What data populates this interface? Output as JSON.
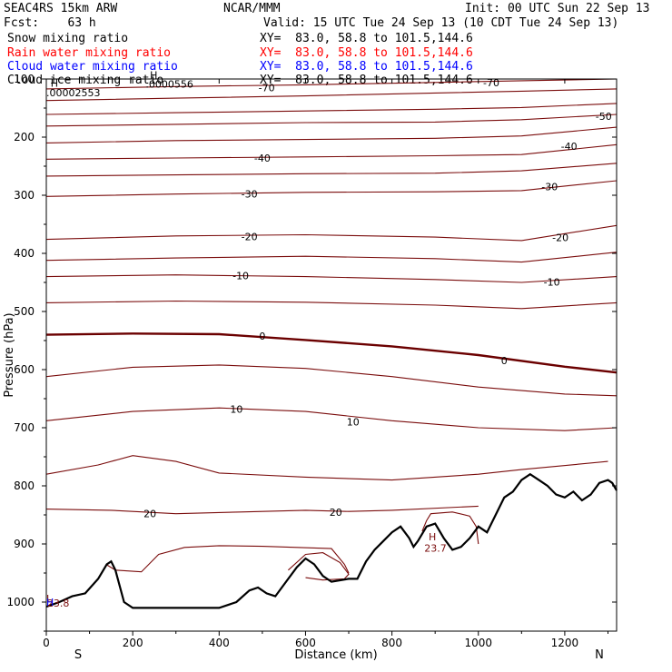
{
  "header": {
    "model": "SEAC4RS 15km ARW",
    "center": "NCAR/MMM",
    "init": "Init: 00 UTC Sun 22 Sep 13",
    "fcst": "Fcst:    63 h",
    "valid": "Valid: 15 UTC Tue 24 Sep 13 (10 CDT Tue 24 Sep 13)",
    "fields": [
      {
        "label": "Snow mixing ratio",
        "xy": "XY=  83.0, 58.8 to 101.5,144.6",
        "color": "#000000"
      },
      {
        "label": "Rain water mixing ratio",
        "xy": "XY=  83.0, 58.8 to 101.5,144.6",
        "color": "#ff0000"
      },
      {
        "label": "Cloud water mixing ratio",
        "xy": "XY=  83.0, 58.8 to 101.5,144.6",
        "color": "#0000ff"
      },
      {
        "label": "Cloud ice mixing ratio",
        "xy": "XY=  83.0, 58.8 to 101.5,144.6",
        "color": "#000000"
      }
    ]
  },
  "chart_data": {
    "type": "line",
    "xlabel": "Distance (km)",
    "ylabel": "Pressure (hPa)",
    "xlim": [
      0,
      1320
    ],
    "ylim": [
      1050,
      100
    ],
    "x_ticks": [
      "0",
      "200",
      "400",
      "600",
      "800",
      "1000",
      "1200"
    ],
    "y_ticks": [
      "100",
      "200",
      "300",
      "400",
      "500",
      "600",
      "700",
      "800",
      "900",
      "1000"
    ],
    "end_labels": {
      "left": "S",
      "right": "N"
    },
    "colors": {
      "contour": "#7a0c0c",
      "zero_contour": "#6b0000",
      "terrain": "#000000"
    },
    "temperature_contours": [
      {
        "value": -70,
        "points": [
          [
            0,
            117
          ],
          [
            300,
            113
          ],
          [
            600,
            110
          ],
          [
            900,
            106
          ],
          [
            1100,
            103
          ],
          [
            1320,
            100
          ]
        ],
        "labels": [
          {
            "text": "-70",
            "x": 510,
            "y": 115
          },
          {
            "text": "-70",
            "x": 1030,
            "y": 106
          }
        ]
      },
      {
        "value": -60,
        "points": [
          [
            0,
            137
          ],
          [
            300,
            133
          ],
          [
            600,
            129
          ],
          [
            900,
            124
          ],
          [
            1100,
            121
          ],
          [
            1320,
            117
          ]
        ],
        "labels": []
      },
      {
        "value": -55,
        "points": [
          [
            0,
            161
          ],
          [
            300,
            158
          ],
          [
            600,
            155
          ],
          [
            900,
            152
          ],
          [
            1100,
            149
          ],
          [
            1320,
            142
          ]
        ],
        "labels": []
      },
      {
        "value": -50,
        "points": [
          [
            0,
            181
          ],
          [
            300,
            178
          ],
          [
            600,
            175
          ],
          [
            900,
            174
          ],
          [
            1100,
            170
          ],
          [
            1320,
            161
          ]
        ],
        "labels": [
          {
            "text": "-50",
            "x": 1290,
            "y": 164
          }
        ]
      },
      {
        "value": -45,
        "points": [
          [
            0,
            210
          ],
          [
            300,
            206
          ],
          [
            600,
            204
          ],
          [
            900,
            202
          ],
          [
            1100,
            198
          ],
          [
            1320,
            183
          ]
        ],
        "labels": []
      },
      {
        "value": -40,
        "points": [
          [
            0,
            238
          ],
          [
            300,
            236
          ],
          [
            600,
            234
          ],
          [
            900,
            232
          ],
          [
            1100,
            230
          ],
          [
            1320,
            213
          ]
        ],
        "labels": [
          {
            "text": "-40",
            "x": 500,
            "y": 236
          },
          {
            "text": "-40",
            "x": 1210,
            "y": 216
          }
        ]
      },
      {
        "value": -35,
        "points": [
          [
            0,
            267
          ],
          [
            300,
            265
          ],
          [
            600,
            263
          ],
          [
            900,
            262
          ],
          [
            1100,
            258
          ],
          [
            1320,
            245
          ]
        ],
        "labels": []
      },
      {
        "value": -30,
        "points": [
          [
            0,
            302
          ],
          [
            300,
            298
          ],
          [
            600,
            295
          ],
          [
            900,
            294
          ],
          [
            1100,
            292
          ],
          [
            1320,
            275
          ]
        ],
        "labels": [
          {
            "text": "-30",
            "x": 470,
            "y": 298
          },
          {
            "text": "-30",
            "x": 1165,
            "y": 285
          }
        ]
      },
      {
        "value": -20,
        "points": [
          [
            0,
            376
          ],
          [
            300,
            370
          ],
          [
            600,
            368
          ],
          [
            900,
            372
          ],
          [
            1100,
            378
          ],
          [
            1320,
            352
          ]
        ],
        "labels": [
          {
            "text": "-20",
            "x": 470,
            "y": 371
          },
          {
            "text": "-20",
            "x": 1190,
            "y": 373
          }
        ]
      },
      {
        "value": -15,
        "points": [
          [
            0,
            412
          ],
          [
            300,
            408
          ],
          [
            600,
            405
          ],
          [
            900,
            409
          ],
          [
            1100,
            415
          ],
          [
            1320,
            398
          ]
        ],
        "labels": []
      },
      {
        "value": -10,
        "points": [
          [
            0,
            440
          ],
          [
            300,
            437
          ],
          [
            600,
            440
          ],
          [
            900,
            445
          ],
          [
            1100,
            450
          ],
          [
            1320,
            440
          ]
        ],
        "labels": [
          {
            "text": "-10",
            "x": 450,
            "y": 438
          },
          {
            "text": "-10",
            "x": 1170,
            "y": 449
          }
        ]
      },
      {
        "value": -5,
        "points": [
          [
            0,
            485
          ],
          [
            300,
            482
          ],
          [
            600,
            484
          ],
          [
            900,
            489
          ],
          [
            1100,
            495
          ],
          [
            1320,
            485
          ]
        ],
        "labels": []
      },
      {
        "value": 0,
        "bold": true,
        "points": [
          [
            0,
            540
          ],
          [
            200,
            538
          ],
          [
            400,
            539
          ],
          [
            600,
            549
          ],
          [
            800,
            560
          ],
          [
            1000,
            575
          ],
          [
            1200,
            595
          ],
          [
            1320,
            605
          ]
        ],
        "labels": [
          {
            "text": "0",
            "x": 500,
            "y": 542
          },
          {
            "text": "0",
            "x": 1060,
            "y": 584
          }
        ]
      },
      {
        "value": 5,
        "points": [
          [
            0,
            612
          ],
          [
            200,
            596
          ],
          [
            400,
            592
          ],
          [
            600,
            598
          ],
          [
            800,
            612
          ],
          [
            1000,
            630
          ],
          [
            1200,
            642
          ],
          [
            1320,
            645
          ]
        ],
        "labels": []
      },
      {
        "value": 10,
        "points": [
          [
            0,
            688
          ],
          [
            200,
            672
          ],
          [
            400,
            666
          ],
          [
            600,
            672
          ],
          [
            800,
            688
          ],
          [
            1000,
            700
          ],
          [
            1200,
            705
          ],
          [
            1320,
            700
          ]
        ],
        "labels": [
          {
            "text": "10",
            "x": 440,
            "y": 668
          },
          {
            "text": "10",
            "x": 710,
            "y": 690
          }
        ]
      },
      {
        "value": 15,
        "points": [
          [
            0,
            780
          ],
          [
            120,
            764
          ],
          [
            200,
            748
          ],
          [
            300,
            758
          ],
          [
            400,
            778
          ],
          [
            600,
            785
          ],
          [
            800,
            790
          ],
          [
            1000,
            780
          ],
          [
            1100,
            772
          ],
          [
            1300,
            758
          ]
        ],
        "labels": []
      },
      {
        "value": 20,
        "points": [
          [
            0,
            840
          ],
          [
            150,
            842
          ],
          [
            300,
            848
          ],
          [
            450,
            845
          ],
          [
            600,
            842
          ],
          [
            700,
            844
          ],
          [
            800,
            842
          ],
          [
            1000,
            835
          ]
        ],
        "labels": [
          {
            "text": "20",
            "x": 240,
            "y": 848
          },
          {
            "text": "20",
            "x": 670,
            "y": 845
          }
        ]
      },
      {
        "value": 20,
        "points": [
          [
            140,
            936
          ],
          [
            160,
            945
          ],
          [
            220,
            948
          ],
          [
            260,
            918
          ],
          [
            320,
            906
          ],
          [
            400,
            903
          ],
          [
            500,
            904
          ],
          [
            580,
            906
          ],
          [
            660,
            908
          ],
          [
            690,
            935
          ],
          [
            700,
            950
          ]
        ],
        "labels": []
      },
      {
        "value": 20,
        "points": [
          [
            560,
            945
          ],
          [
            600,
            918
          ],
          [
            640,
            915
          ],
          [
            680,
            932
          ],
          [
            700,
            952
          ],
          [
            690,
            960
          ],
          [
            640,
            962
          ],
          [
            600,
            958
          ]
        ],
        "labels": []
      },
      {
        "value": 20,
        "points": [
          [
            870,
            878
          ],
          [
            880,
            860
          ],
          [
            890,
            848
          ],
          [
            940,
            845
          ],
          [
            980,
            852
          ],
          [
            995,
            870
          ],
          [
            1000,
            900
          ]
        ],
        "labels": []
      }
    ],
    "terrain": [
      [
        0,
        1008
      ],
      [
        30,
        1000
      ],
      [
        60,
        990
      ],
      [
        90,
        985
      ],
      [
        120,
        960
      ],
      [
        140,
        935
      ],
      [
        150,
        930
      ],
      [
        160,
        945
      ],
      [
        180,
        1000
      ],
      [
        200,
        1010
      ],
      [
        300,
        1010
      ],
      [
        400,
        1010
      ],
      [
        440,
        1000
      ],
      [
        470,
        980
      ],
      [
        490,
        975
      ],
      [
        510,
        985
      ],
      [
        530,
        990
      ],
      [
        560,
        960
      ],
      [
        580,
        940
      ],
      [
        600,
        925
      ],
      [
        620,
        935
      ],
      [
        640,
        955
      ],
      [
        660,
        965
      ],
      [
        700,
        960
      ],
      [
        720,
        960
      ],
      [
        740,
        930
      ],
      [
        760,
        910
      ],
      [
        780,
        895
      ],
      [
        800,
        880
      ],
      [
        820,
        870
      ],
      [
        840,
        890
      ],
      [
        850,
        905
      ],
      [
        860,
        895
      ],
      [
        880,
        870
      ],
      [
        900,
        865
      ],
      [
        920,
        890
      ],
      [
        940,
        910
      ],
      [
        960,
        905
      ],
      [
        980,
        890
      ],
      [
        1000,
        870
      ],
      [
        1020,
        880
      ],
      [
        1040,
        850
      ],
      [
        1060,
        820
      ],
      [
        1080,
        810
      ],
      [
        1100,
        790
      ],
      [
        1120,
        780
      ],
      [
        1140,
        790
      ],
      [
        1160,
        800
      ],
      [
        1180,
        815
      ],
      [
        1200,
        820
      ],
      [
        1220,
        810
      ],
      [
        1240,
        825
      ],
      [
        1260,
        815
      ],
      [
        1280,
        795
      ],
      [
        1300,
        790
      ],
      [
        1310,
        795
      ],
      [
        1320,
        808
      ]
    ],
    "annotations": [
      {
        "text": "H",
        "x": 10,
        "y": 113,
        "color": "#000000"
      },
      {
        "text": ".00002553",
        "x": 0,
        "y": 130,
        "color": "#000000"
      },
      {
        "text": "H",
        "x": 240,
        "y": 99,
        "color": "#000000"
      },
      {
        "text": ".0000556",
        "x": 230,
        "y": 115,
        "color": "#000000"
      },
      {
        "text": "H",
        "x": 885,
        "y": 894,
        "color": "#7a0c0c"
      },
      {
        "text": "23.7",
        "x": 875,
        "y": 913,
        "color": "#7a0c0c"
      },
      {
        "text": "L",
        "x": 0,
        "y": 1000,
        "color": "#7a0c0c"
      },
      {
        "text": "23.8",
        "x": 2,
        "y": 1008,
        "color": "#7a0c0c"
      },
      {
        "text": "H",
        "x": 0,
        "y": 1006,
        "color": "#0000ff"
      }
    ]
  }
}
